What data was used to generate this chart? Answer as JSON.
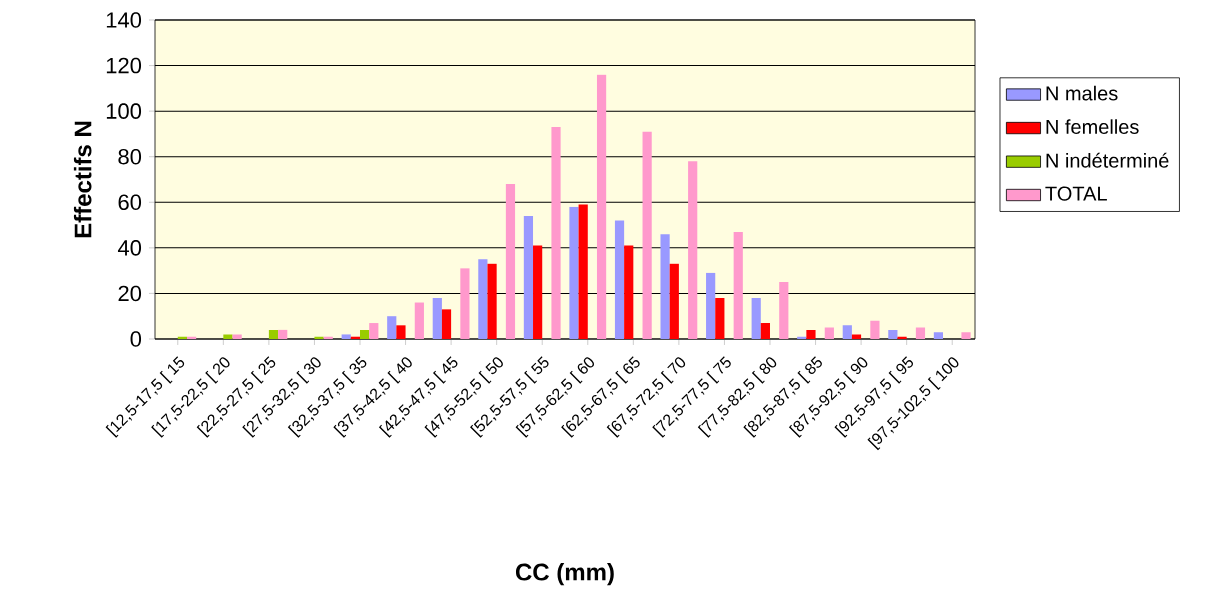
{
  "chart_data": {
    "type": "bar",
    "xlabel": "CC (mm)",
    "ylabel": "Effectifs N",
    "categories": [
      "[12,5-17,5 [ 15",
      "[17,5-22,5 [ 20",
      "[22,5-27,5 [ 25",
      "[27,5-32,5 [ 30",
      "[32,5-37,5 [ 35",
      "[37,5-42,5 [ 40",
      "[42,5-47,5 [ 45",
      "[47,5-52,5 [ 50",
      "[52,5-57,5 [ 55",
      "[57,5-62,5 [ 60",
      "[62,5-67,5 [ 65",
      "[67,5-72,5 [ 70",
      "[72,5-77,5 [ 75",
      "[77,5-82,5 [ 80",
      "[82,5-87,5 [ 85",
      "[87,5-92,5 [ 90",
      "[92,5-97,5 [ 95",
      "[97,5-102,5 [ 100"
    ],
    "series": [
      {
        "name": "N  males",
        "color": "#9999ff",
        "values": [
          0,
          0,
          0,
          0,
          2,
          10,
          18,
          35,
          54,
          58,
          52,
          46,
          29,
          18,
          1,
          6,
          4,
          3
        ]
      },
      {
        "name": "N  femelles",
        "color": "#ff0000",
        "values": [
          0,
          0,
          0,
          0,
          1,
          6,
          13,
          33,
          41,
          59,
          41,
          33,
          18,
          7,
          4,
          2,
          1,
          0
        ]
      },
      {
        "name": "N  indéterminé",
        "color": "#99cc00",
        "values": [
          1,
          2,
          4,
          1,
          4,
          0,
          0,
          0,
          0,
          0,
          0,
          0,
          0,
          0,
          0,
          0,
          0,
          0
        ]
      },
      {
        "name": "TOTAL",
        "color": "#ff99cc",
        "values": [
          1,
          2,
          4,
          1,
          7,
          16,
          31,
          68,
          93,
          116,
          91,
          78,
          47,
          25,
          5,
          8,
          5,
          3
        ]
      }
    ],
    "ylim": [
      0,
      140
    ],
    "yticks": [
      0,
      20,
      40,
      60,
      80,
      100,
      120,
      140
    ],
    "grid": "y",
    "legend": "right"
  }
}
